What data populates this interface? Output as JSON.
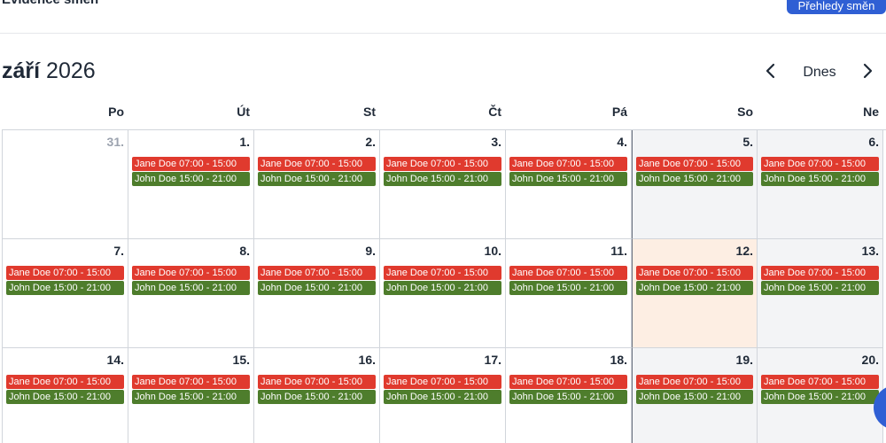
{
  "header": {
    "title": "Evidence směn",
    "overview_button": "Přehledy směn"
  },
  "calendar": {
    "month_name": "září",
    "year": "2026",
    "nav": {
      "prev_icon": "chevron-left-icon",
      "today_label": "Dnes",
      "next_icon": "chevron-right-icon"
    },
    "weekdays": [
      "Po",
      "Út",
      "St",
      "Čt",
      "Pá",
      "So",
      "Ne"
    ],
    "event_colors": {
      "jane": "#e03a2e",
      "john": "#4e7d2c",
      "today_bg": "#fdeee3",
      "weekend_bg": "#f3f4f6"
    },
    "weeks": [
      [
        {
          "num": "31.",
          "other_month": true,
          "events": []
        },
        {
          "num": "1.",
          "events": [
            {
              "text": "Jane Doe 07:00 - 15:00",
              "color": "red"
            },
            {
              "text": "John Doe 15:00 - 21:00",
              "color": "green"
            }
          ]
        },
        {
          "num": "2.",
          "events": [
            {
              "text": "Jane Doe 07:00 - 15:00",
              "color": "red"
            },
            {
              "text": "John Doe 15:00 - 21:00",
              "color": "green"
            }
          ]
        },
        {
          "num": "3.",
          "events": [
            {
              "text": "Jane Doe 07:00 - 15:00",
              "color": "red"
            },
            {
              "text": "John Doe 15:00 - 21:00",
              "color": "green"
            }
          ]
        },
        {
          "num": "4.",
          "events": [
            {
              "text": "Jane Doe 07:00 - 15:00",
              "color": "red"
            },
            {
              "text": "John Doe 15:00 - 21:00",
              "color": "green"
            }
          ]
        },
        {
          "num": "5.",
          "weekend": true,
          "events": [
            {
              "text": "Jane Doe 07:00 - 15:00",
              "color": "red"
            },
            {
              "text": "John Doe 15:00 - 21:00",
              "color": "green"
            }
          ]
        },
        {
          "num": "6.",
          "weekend": true,
          "events": [
            {
              "text": "Jane Doe 07:00 - 15:00",
              "color": "red"
            },
            {
              "text": "John Doe 15:00 - 21:00",
              "color": "green"
            }
          ]
        }
      ],
      [
        {
          "num": "7.",
          "events": [
            {
              "text": "Jane Doe 07:00 - 15:00",
              "color": "red"
            },
            {
              "text": "John Doe 15:00 - 21:00",
              "color": "green"
            }
          ]
        },
        {
          "num": "8.",
          "events": [
            {
              "text": "Jane Doe 07:00 - 15:00",
              "color": "red"
            },
            {
              "text": "John Doe 15:00 - 21:00",
              "color": "green"
            }
          ]
        },
        {
          "num": "9.",
          "events": [
            {
              "text": "Jane Doe 07:00 - 15:00",
              "color": "red"
            },
            {
              "text": "John Doe 15:00 - 21:00",
              "color": "green"
            }
          ]
        },
        {
          "num": "10.",
          "events": [
            {
              "text": "Jane Doe 07:00 - 15:00",
              "color": "red"
            },
            {
              "text": "John Doe 15:00 - 21:00",
              "color": "green"
            }
          ]
        },
        {
          "num": "11.",
          "events": [
            {
              "text": "Jane Doe 07:00 - 15:00",
              "color": "red"
            },
            {
              "text": "John Doe 15:00 - 21:00",
              "color": "green"
            }
          ]
        },
        {
          "num": "12.",
          "today": true,
          "events": [
            {
              "text": "Jane Doe 07:00 - 15:00",
              "color": "red"
            },
            {
              "text": "John Doe 15:00 - 21:00",
              "color": "green"
            }
          ]
        },
        {
          "num": "13.",
          "weekend": true,
          "events": [
            {
              "text": "Jane Doe 07:00 - 15:00",
              "color": "red"
            },
            {
              "text": "John Doe 15:00 - 21:00",
              "color": "green"
            }
          ]
        }
      ],
      [
        {
          "num": "14.",
          "events": [
            {
              "text": "Jane Doe 07:00 - 15:00",
              "color": "red"
            },
            {
              "text": "John Doe 15:00 - 21:00",
              "color": "green"
            }
          ]
        },
        {
          "num": "15.",
          "events": [
            {
              "text": "Jane Doe 07:00 - 15:00",
              "color": "red"
            },
            {
              "text": "John Doe 15:00 - 21:00",
              "color": "green"
            }
          ]
        },
        {
          "num": "16.",
          "events": [
            {
              "text": "Jane Doe 07:00 - 15:00",
              "color": "red"
            },
            {
              "text": "John Doe 15:00 - 21:00",
              "color": "green"
            }
          ]
        },
        {
          "num": "17.",
          "events": [
            {
              "text": "Jane Doe 07:00 - 15:00",
              "color": "red"
            },
            {
              "text": "John Doe 15:00 - 21:00",
              "color": "green"
            }
          ]
        },
        {
          "num": "18.",
          "events": [
            {
              "text": "Jane Doe 07:00 - 15:00",
              "color": "red"
            },
            {
              "text": "John Doe 15:00 - 21:00",
              "color": "green"
            }
          ]
        },
        {
          "num": "19.",
          "weekend": true,
          "events": [
            {
              "text": "Jane Doe 07:00 - 15:00",
              "color": "red"
            },
            {
              "text": "John Doe 15:00 - 21:00",
              "color": "green"
            }
          ]
        },
        {
          "num": "20.",
          "weekend": true,
          "events": [
            {
              "text": "Jane Doe 07:00 - 15:00",
              "color": "red"
            },
            {
              "text": "John Doe 15:00 - 21:00",
              "color": "green"
            }
          ]
        }
      ]
    ]
  }
}
